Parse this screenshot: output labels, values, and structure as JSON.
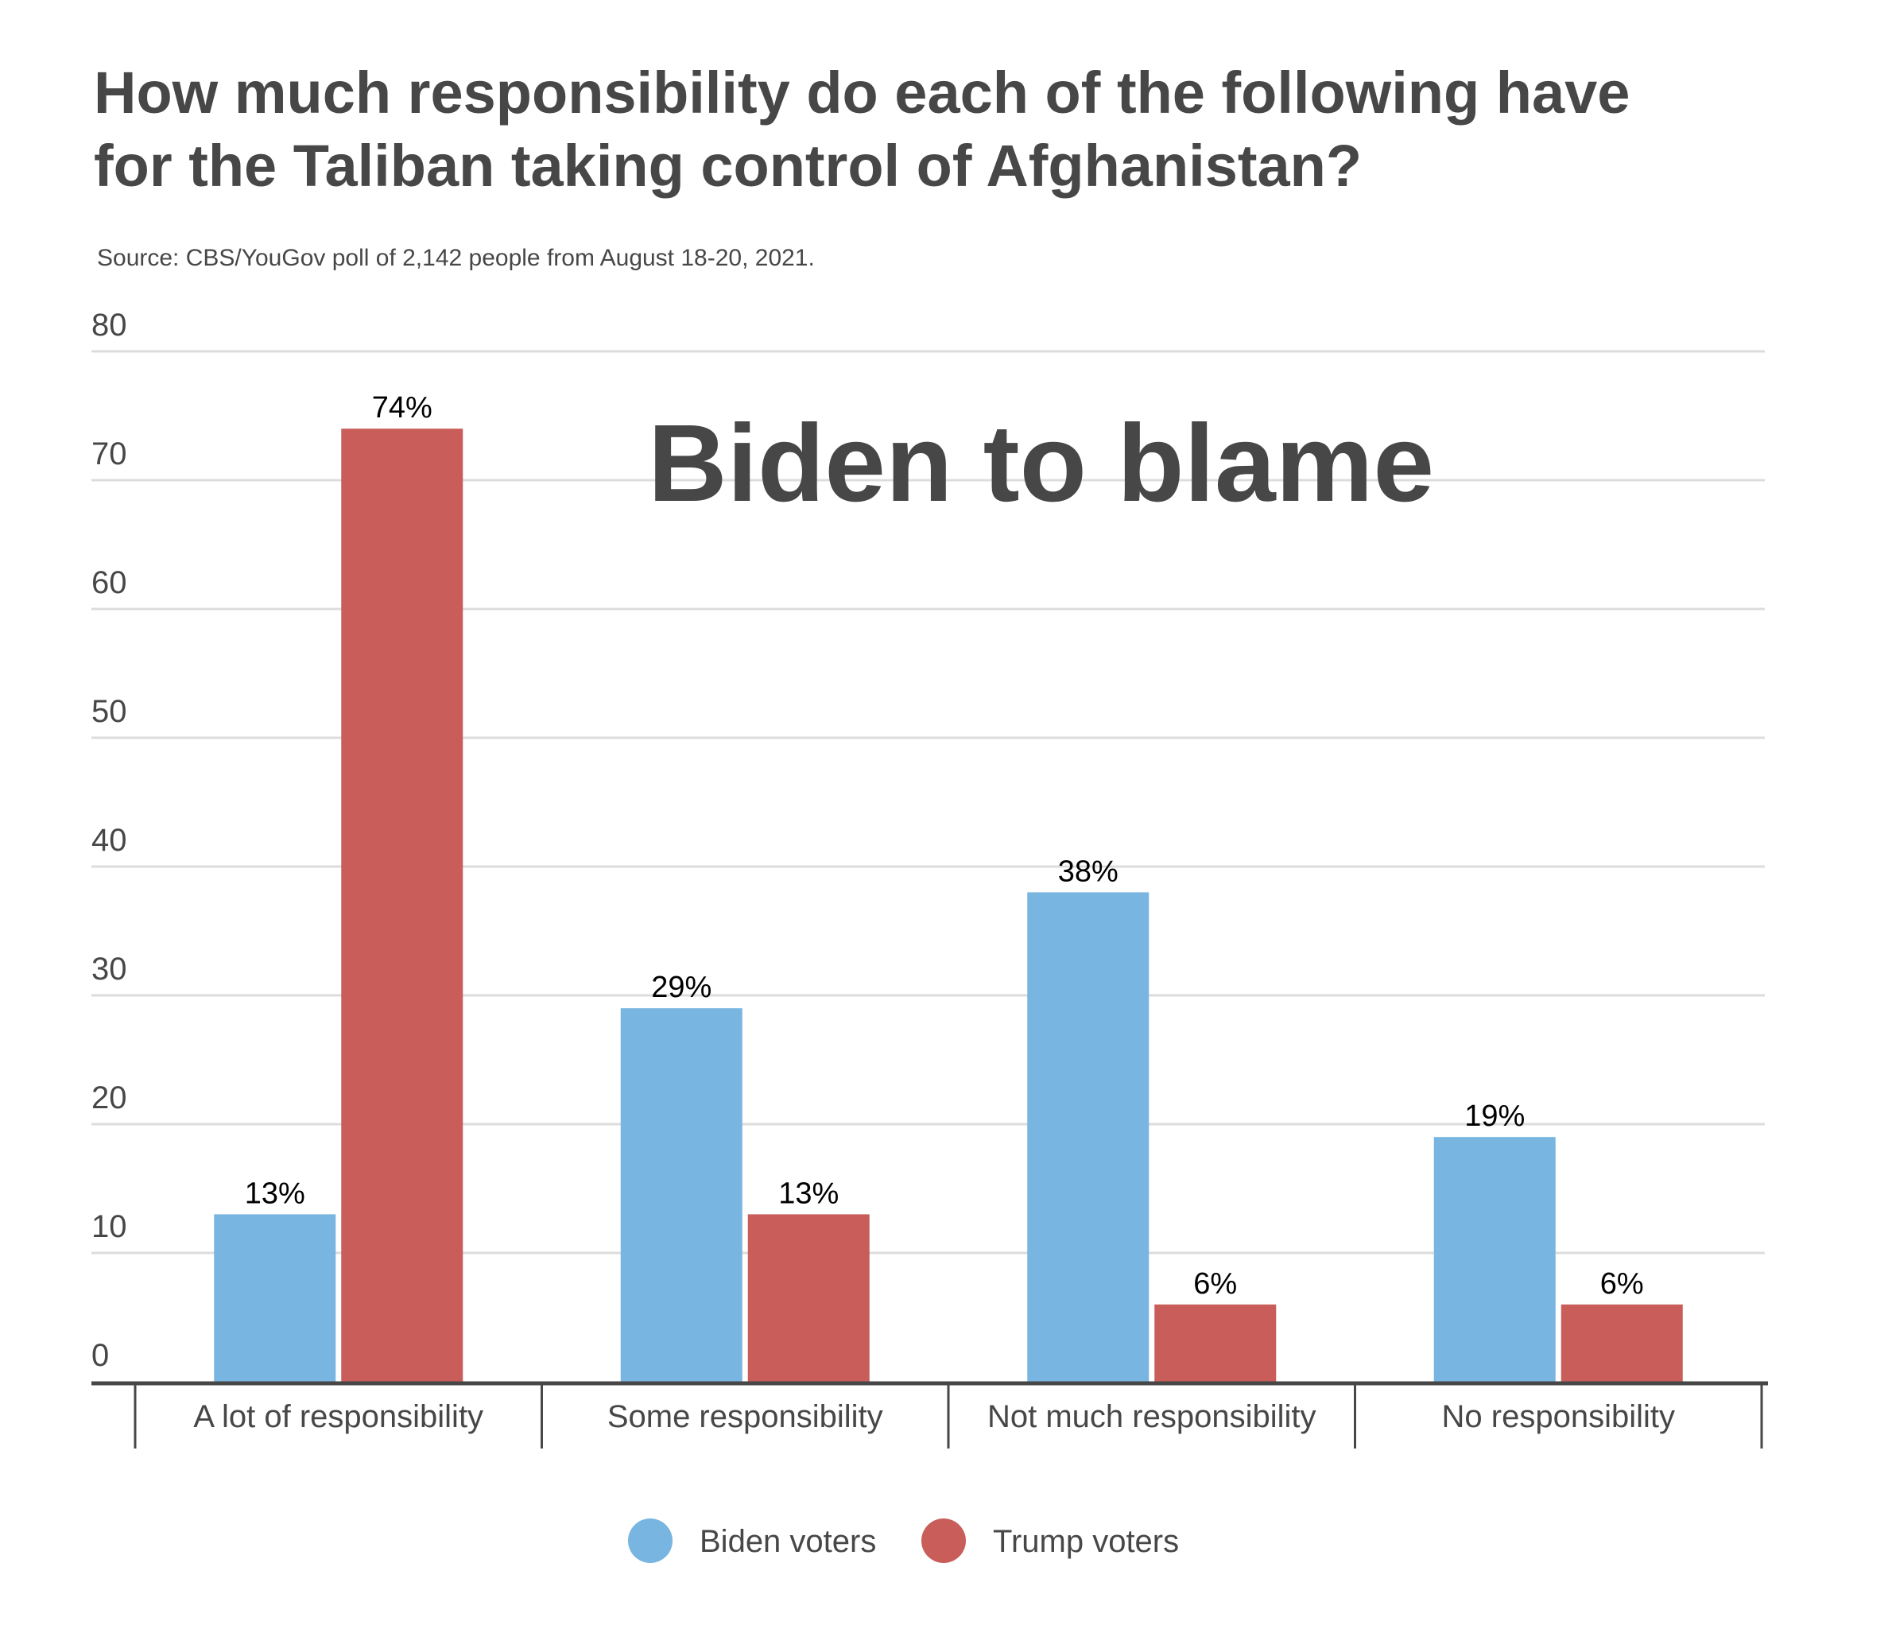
{
  "chart_data": {
    "type": "bar",
    "title": "How much responsibility do each of the following have for the Taliban taking control of Afghanistan?",
    "title_lines": [
      "How much responsibility do each of the following have",
      "for the Taliban taking control of Afghanistan?"
    ],
    "subtitle": "Source: CBS/YouGov poll of 2,142 people from August 18-20, 2021.",
    "annotation": "Biden to blame",
    "xlabel": "",
    "ylabel": "",
    "ylim": [
      0,
      80
    ],
    "yticks": [
      0,
      10,
      20,
      30,
      40,
      50,
      60,
      70,
      80
    ],
    "grid": true,
    "legend_position": "bottom-center",
    "categories": [
      "A lot of responsibility",
      "Some responsibility",
      "Not much responsibility",
      "No responsibility"
    ],
    "series": [
      {
        "name": "Biden voters",
        "color": "#78B5E0",
        "values": [
          13,
          29,
          38,
          19
        ],
        "labels": [
          "13%",
          "29%",
          "38%",
          "19%"
        ]
      },
      {
        "name": "Trump voters",
        "color": "#C95D5A",
        "values": [
          74,
          13,
          6,
          6
        ],
        "labels": [
          "74%",
          "13%",
          "6%",
          "6%"
        ]
      }
    ]
  }
}
